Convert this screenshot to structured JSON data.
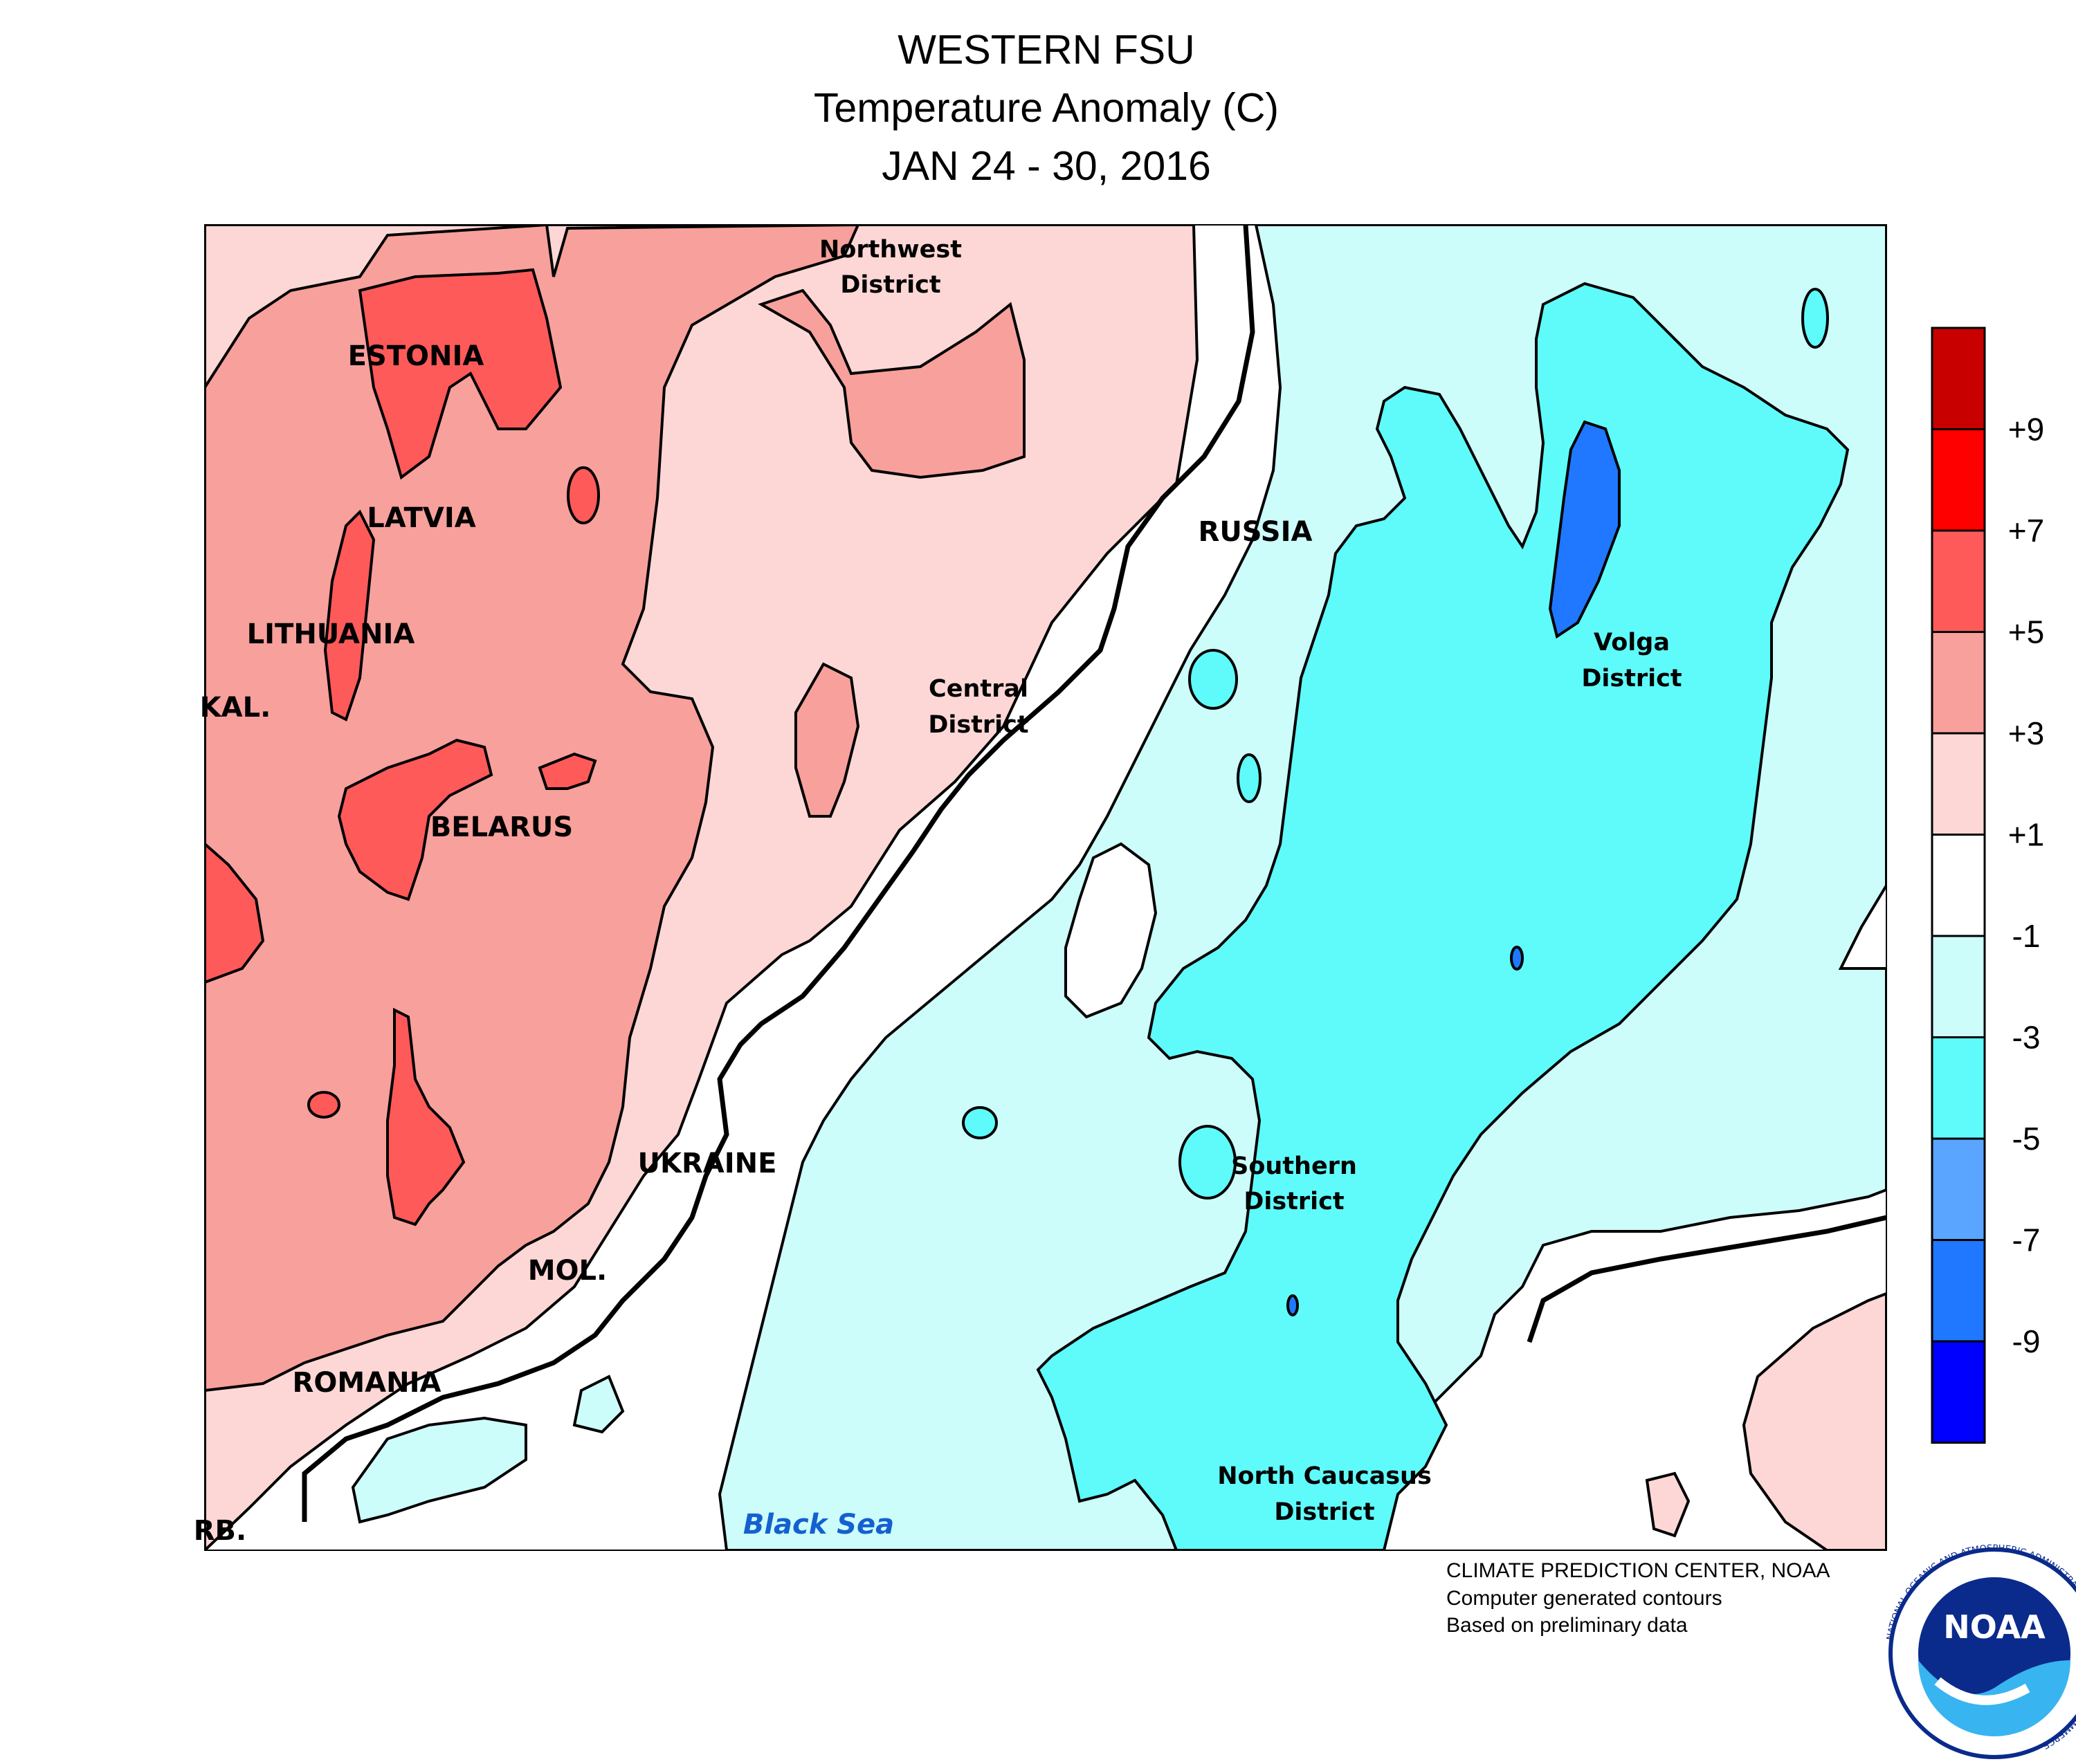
{
  "header": {
    "title": "WESTERN FSU",
    "subtitle": "Temperature Anomaly (C)",
    "date_range": "JAN 24 - 30, 2016"
  },
  "map_labels": {
    "countries": {
      "estonia": "ESTONIA",
      "latvia": "LATVIA",
      "lithuania": "LITHUANIA",
      "kaliningrad": "KAL.",
      "belarus": "BELARUS",
      "ukraine": "UKRAINE",
      "moldova": "MOL.",
      "romania": "ROMANIA",
      "serbia": "RB.",
      "russia": "RUSSIA"
    },
    "districts": {
      "northwest_1": "Northwest",
      "northwest_2": "District",
      "central_1": "Central",
      "central_2": "District",
      "volga_1": "Volga",
      "volga_2": "District",
      "southern_1": "Southern",
      "southern_2": "District",
      "north_caucasus_1": "North Caucasus",
      "north_caucasus_2": "District"
    },
    "water": {
      "black_sea": "Black Sea"
    }
  },
  "legend": {
    "unit": "C",
    "bins": [
      {
        "color": "#c80000",
        "range": "> +9"
      },
      {
        "color": "#ff0000",
        "range": "+7 to +9"
      },
      {
        "color": "#ff5a5a",
        "range": "+5 to +7"
      },
      {
        "color": "#f7a09c",
        "range": "+3 to +5"
      },
      {
        "color": "#fcd7d5",
        "range": "+1 to +3"
      },
      {
        "color": "#ffffff",
        "range": "-1 to +1"
      },
      {
        "color": "#ccfdfb",
        "range": "-3 to -1"
      },
      {
        "color": "#5ffbfb",
        "range": "-5 to -3"
      },
      {
        "color": "#5aa5ff",
        "range": "-7 to -5"
      },
      {
        "color": "#1f78ff",
        "range": "-9 to -7"
      },
      {
        "color": "#0000ff",
        "range": "< -9"
      }
    ],
    "tick_labels": [
      "+9",
      "+7",
      "+5",
      "+3",
      "+1",
      "-1",
      "-3",
      "-5",
      "-7",
      "-9"
    ]
  },
  "footer": {
    "line1": "CLIMATE PREDICTION CENTER, NOAA",
    "line2": "Computer generated contours",
    "line3": "Based on preliminary data"
  },
  "logo": {
    "text": "NOAA",
    "ring_text": "NATIONAL OCEANIC AND ATMOSPHERIC ADMINISTRATION · U.S. DEPARTMENT OF COMMERCE"
  }
}
